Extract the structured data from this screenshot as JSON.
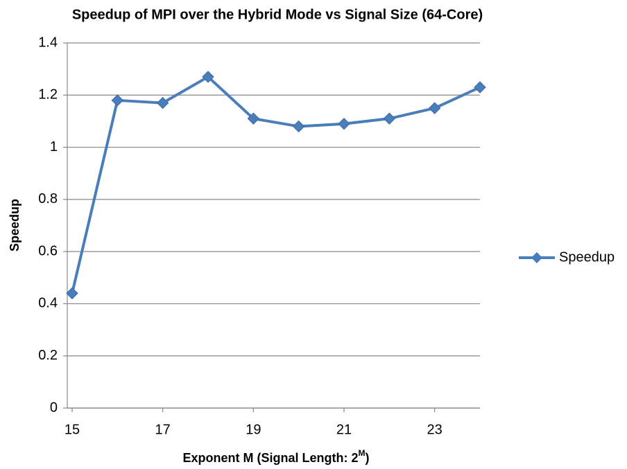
{
  "chart_data": {
    "type": "line",
    "title": "Speedup of MPI over the Hybrid Mode vs Signal Size (64-Core)",
    "xlabel": {
      "text": "Exponent M (Signal Length: 2",
      "sup": "M",
      "end": ")"
    },
    "ylabel": "Speedup",
    "x": [
      15,
      16,
      17,
      18,
      19,
      20,
      21,
      22,
      23,
      24
    ],
    "series": [
      {
        "name": "Speedup",
        "color": "#4a7ebb",
        "values": [
          0.44,
          1.18,
          1.17,
          1.27,
          1.11,
          1.08,
          1.09,
          1.11,
          1.15,
          1.23
        ]
      }
    ],
    "xlim": [
      15,
      24
    ],
    "xticks": [
      15,
      17,
      19,
      21,
      23
    ],
    "ylim": [
      0,
      1.4
    ],
    "yticks": [
      0,
      0.2,
      0.4,
      0.6,
      0.8,
      1,
      1.2,
      1.4
    ],
    "grid": true,
    "legend": "right"
  }
}
